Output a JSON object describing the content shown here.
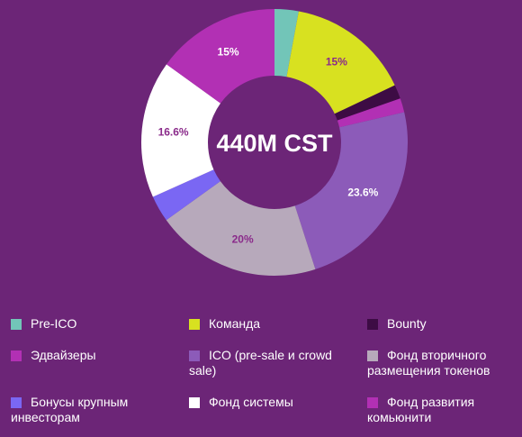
{
  "chart_data": {
    "type": "pie",
    "center_label": "440M CST",
    "slices": [
      {
        "name": "Pre-ICO",
        "value": 2.9,
        "color": "#72c5b8",
        "label": ""
      },
      {
        "name": "Команда",
        "value": 15,
        "color": "#d8e120",
        "label": "15%",
        "label_color": "#8a2a8a"
      },
      {
        "name": "Bounty",
        "value": 1.7,
        "color": "#3d0c44",
        "label": ""
      },
      {
        "name": "Эдвайзеры",
        "value": 1.7,
        "color": "#b230b4",
        "label": ""
      },
      {
        "name": "ICO (pre-sale и crowd sale)",
        "value": 23.6,
        "color": "#8c5bb9",
        "label": "23.6%",
        "label_color": "#ffffff"
      },
      {
        "name": "Фонд вторичного размещения токенов",
        "value": 20,
        "color": "#b7a9bb",
        "label": "20%",
        "label_color": "#8a2a8a"
      },
      {
        "name": "Бонусы крупным инвесторам",
        "value": 3.2,
        "color": "#7a67f3",
        "label": ""
      },
      {
        "name": "Фонд системы",
        "value": 16.6,
        "color": "#ffffff",
        "label": "16.6%",
        "label_color": "#8a2a8a"
      },
      {
        "name": "Фонд развития комьюнити",
        "value": 15,
        "color": "#b230b4",
        "label": "15%",
        "label_color": "#ffffff"
      }
    ]
  },
  "legend": [
    {
      "label": "Pre-ICO",
      "color": "#72c5b8"
    },
    {
      "label": "Команда",
      "color": "#d8e120"
    },
    {
      "label": "Bounty",
      "color": "#3d0c44"
    },
    {
      "label": "Эдвайзеры",
      "color": "#b230b4"
    },
    {
      "label": "ICO (pre-sale и crowd sale)",
      "color": "#8c5bb9"
    },
    {
      "label": "Фонд вторичного размещения токенов",
      "color": "#b7a9bb"
    },
    {
      "label": "Бонусы крупным инвесторам",
      "color": "#7a67f3"
    },
    {
      "label": "Фонд системы",
      "color": "#ffffff"
    },
    {
      "label": "Фонд развития комьюнити",
      "color": "#b230b4"
    }
  ]
}
